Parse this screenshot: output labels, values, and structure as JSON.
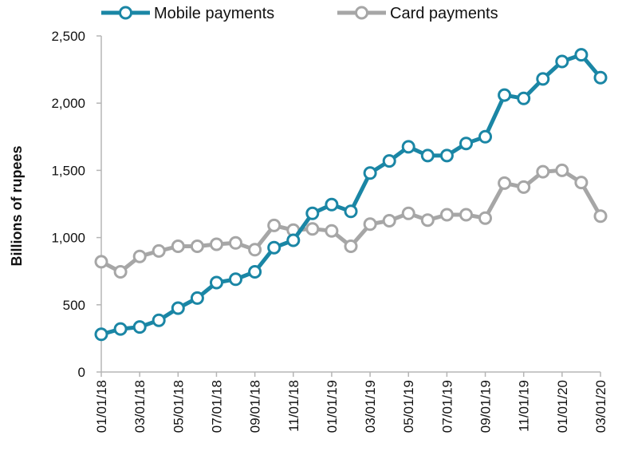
{
  "chart_data": {
    "type": "line",
    "ylabel": "Billions of rupees",
    "xlabel": "",
    "ylim": [
      0,
      2500
    ],
    "yticks": [
      0,
      500,
      1000,
      1500,
      2000,
      2500
    ],
    "ytick_labels": [
      "0",
      "500",
      "1,000",
      "1,500",
      "2,000",
      "2,500"
    ],
    "x": [
      "01/01/18",
      "02/01/18",
      "03/01/18",
      "04/01/18",
      "05/01/18",
      "06/01/18",
      "07/01/18",
      "08/01/18",
      "09/01/18",
      "10/01/18",
      "11/01/18",
      "12/01/18",
      "01/01/19",
      "02/01/19",
      "03/01/19",
      "04/01/19",
      "05/01/19",
      "06/01/19",
      "07/01/19",
      "08/01/19",
      "09/01/19",
      "10/01/19",
      "11/01/19",
      "12/01/19",
      "01/01/20",
      "02/01/20",
      "03/01/20"
    ],
    "xtick_labels": [
      "01/01/18",
      "03/01/18",
      "05/01/18",
      "07/01/18",
      "09/01/18",
      "11/01/18",
      "01/01/19",
      "03/01/19",
      "05/01/19",
      "07/01/19",
      "09/01/19",
      "11/01/19",
      "01/01/20",
      "03/01/20"
    ],
    "grid": false,
    "legend_position": "top",
    "series": [
      {
        "name": "Mobile payments",
        "color": "#1a86a5",
        "values": [
          280,
          320,
          335,
          385,
          475,
          550,
          665,
          690,
          745,
          925,
          980,
          1180,
          1245,
          1195,
          1480,
          1570,
          1675,
          1610,
          1610,
          1700,
          1750,
          2060,
          2035,
          2180,
          2310,
          2360,
          2190
        ]
      },
      {
        "name": "Card payments",
        "color": "#a6a6a6",
        "values": [
          820,
          745,
          860,
          900,
          935,
          935,
          950,
          960,
          910,
          1090,
          1055,
          1065,
          1050,
          935,
          1100,
          1125,
          1180,
          1130,
          1170,
          1170,
          1145,
          1405,
          1375,
          1490,
          1500,
          1410,
          1160
        ]
      }
    ]
  }
}
